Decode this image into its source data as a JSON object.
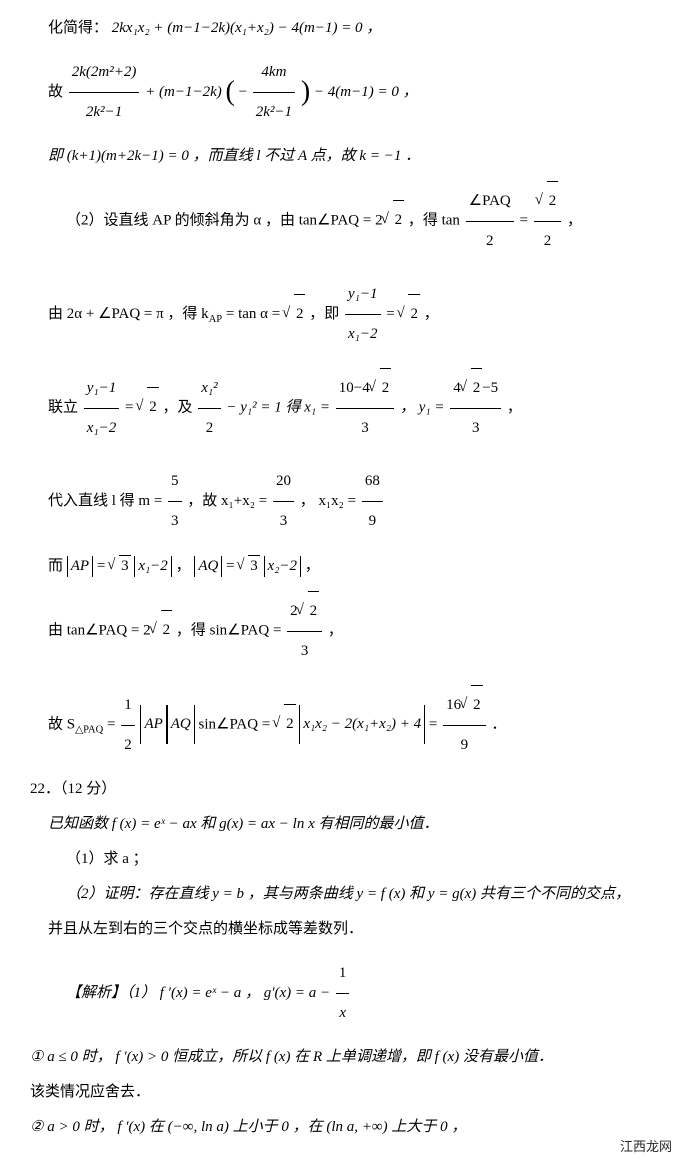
{
  "watermark": "江西龙网",
  "lines": {
    "l1a": "化简得：",
    "l1b": "2kx₁x₂ + (m−1−2k)(x₁+x₂) − 4(m−1) = 0 ，",
    "l2a": "故 ",
    "l2b": " + (m−1−2k)",
    "l2c": " − 4(m−1) = 0 ，",
    "l3a": "即 (k+1)(m+2k−1) = 0 ，而直线 l 不过 A 点，故 k = −1 ．",
    "l4a": "（2）设直线 AP 的倾斜角为 α ，由 tan∠PAQ = 2",
    "l4b": " ，得 tan",
    "l4c": " = ",
    "l4d": " ，",
    "l5a": "由 2α + ∠PAQ = π ，得 k",
    "l5b": " = tan α = ",
    "l5c": " ，即 ",
    "l5d": " = ",
    "l5e": " ，",
    "l6a": "联立 ",
    "l6b": " = ",
    "l6c": " ，及 ",
    "l6d": " − y₁² = 1 得 x₁ = ",
    "l6e": " ， y₁ = ",
    "l6f": " ，",
    "l7a": "代入直线 l 得 m = ",
    "l7b": " ，故 x₁+x₂ = ",
    "l7c": " ， x₁x₂ = ",
    "l8a": "而 ",
    "l8b": " = ",
    "l8c": " ， ",
    "l8d": " = ",
    "l8e": " ，",
    "l9a": "由 tan∠PAQ = 2",
    "l9b": " ，得 sin∠PAQ = ",
    "l9c": " ，",
    "l10a": "故 S",
    "l10b": " = ",
    "l10c": "sin∠PAQ = ",
    "l10d": " ",
    "l10e": " = ",
    "l10f": " ．",
    "q22": "22．（12 分）",
    "l11": "已知函数 f (x) = eˣ − ax 和 g(x) = ax − ln x 有相同的最小值．",
    "l12": "（1）求 a ；",
    "l13": "（2）证明：存在直线 y = b ，其与两条曲线 y = f (x) 和 y = g(x) 共有三个不同的交点，",
    "l14": "并且从左到右的三个交点的横坐标成等差数列．",
    "l15a": "【解析】（1） f ′(x) = eˣ − a ， g′(x) = a − ",
    "l16": "① a ≤ 0 时， f ′(x) > 0 恒成立，所以 f (x) 在 R 上单调递增，即 f (x) 没有最小值．",
    "l17": "该类情况应舍去．",
    "l18": "② a > 0 时， f ′(x) 在 (−∞, ln a) 上小于 0 ，在 (ln a, +∞) 上大于 0 ，"
  },
  "fracs": {
    "f2_1n": "2k(2m²+2)",
    "f2_1d": "2k²−1",
    "f2_2n": "4km",
    "f2_2d": "2k²−1",
    "f4_1n": "∠PAQ",
    "f4_1d": "2",
    "f4_2d": "2",
    "f5_1n": "y₁−1",
    "f5_1d": "x₁−2",
    "f6_1n": "y₁−1",
    "f6_1d": "x₁−2",
    "f6_2n": "x₁²",
    "f6_2d": "2",
    "f6_3d": "3",
    "f6_4d": "3",
    "f7_1n": "5",
    "f7_1d": "3",
    "f7_2n": "20",
    "f7_2d": "3",
    "f7_3n": "68",
    "f7_3d": "9",
    "f9_1d": "3",
    "f10_1n": "1",
    "f10_1d": "2",
    "f10_2d": "9",
    "f15_1n": "1",
    "f15_1d": "x"
  },
  "sqrts": {
    "s2": "2",
    "s3": "3"
  },
  "abs": {
    "ap": "AP",
    "aq": "AQ",
    "x12": "x₁−2",
    "x22": "x₂−2",
    "exp": "x₁x₂ − 2(x₁+x₂) + 4"
  },
  "subs": {
    "ap": "AP",
    "tri": "△PAQ"
  }
}
